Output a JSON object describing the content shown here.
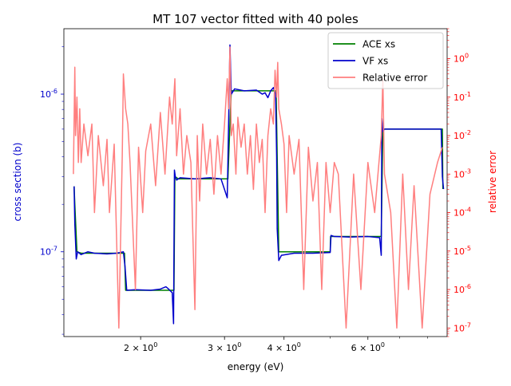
{
  "chart_data": {
    "type": "line",
    "title": "MT 107 vector fitted with 40 poles",
    "xlabel": "energy (eV)",
    "ylabel_left": "cross section (b)",
    "ylabel_right": "relative error",
    "x_scale": "log",
    "y_left_scale": "log",
    "y_right_scale": "log",
    "xlim": [
      1.38,
      8.8
    ],
    "ylim_left": [
      2.9e-08,
      2.6e-06
    ],
    "ylim_right": [
      6e-08,
      6.0
    ],
    "x_ticks": [
      {
        "value": 2,
        "label": "2 × 10^0"
      },
      {
        "value": 3,
        "label": "3 × 10^0"
      },
      {
        "value": 4,
        "label": "4 × 10^0"
      },
      {
        "value": 6,
        "label": "6 × 10^0"
      }
    ],
    "y_left_ticks": [
      {
        "value": 1e-07,
        "label": "10^-7"
      },
      {
        "value": 1e-06,
        "label": "10^-6"
      }
    ],
    "y_right_ticks": [
      {
        "value": 1e-07,
        "label": "10^-7"
      },
      {
        "value": 1e-06,
        "label": "10^-6"
      },
      {
        "value": 1e-05,
        "label": "10^-5"
      },
      {
        "value": 0.0001,
        "label": "10^-4"
      },
      {
        "value": 0.001,
        "label": "10^-3"
      },
      {
        "value": 0.01,
        "label": "10^-2"
      },
      {
        "value": 0.1,
        "label": "10^-1"
      },
      {
        "value": 1,
        "label": "10^0"
      }
    ],
    "legend": {
      "placement": "top-right",
      "entries": [
        {
          "label": "ACE xs",
          "color": "#008000"
        },
        {
          "label": "VF xs",
          "color": "#0000cc"
        },
        {
          "label": "Relative error",
          "color": "#ff7f7f"
        }
      ]
    },
    "series": [
      {
        "name": "ACE xs",
        "axis": "left",
        "color": "#008000",
        "x": [
          1.45,
          1.455,
          1.47,
          1.5,
          1.6,
          1.75,
          1.85,
          1.86,
          2.3,
          2.35,
          2.36,
          2.4,
          3.05,
          3.07,
          3.1,
          3.12,
          3.5,
          3.85,
          3.9,
          3.95,
          4.6,
          5.0,
          5.01,
          6.4,
          6.45,
          6.5,
          8.6,
          8.62
        ],
        "y": [
          2.6e-07,
          2e-07,
          1e-07,
          9.8e-08,
          9.8e-08,
          9.8e-08,
          9.8e-08,
          5.7e-08,
          5.7e-08,
          5.7e-08,
          3e-07,
          2.9e-07,
          2.9e-07,
          5e-07,
          1.05e-06,
          1.05e-06,
          1.05e-06,
          1.05e-06,
          1e-07,
          1e-07,
          1e-07,
          1e-07,
          1.25e-07,
          1.25e-07,
          6e-07,
          6e-07,
          6e-07,
          2.5e-07
        ]
      },
      {
        "name": "VF xs",
        "axis": "left",
        "color": "#0000cc",
        "x": [
          1.45,
          1.455,
          1.465,
          1.475,
          1.5,
          1.55,
          1.6,
          1.7,
          1.78,
          1.84,
          1.855,
          1.87,
          1.95,
          2.1,
          2.2,
          2.26,
          2.29,
          2.33,
          2.345,
          2.355,
          2.365,
          2.38,
          2.42,
          2.6,
          2.8,
          2.95,
          3.04,
          3.06,
          3.08,
          3.1,
          3.15,
          3.3,
          3.5,
          3.6,
          3.65,
          3.7,
          3.75,
          3.8,
          3.84,
          3.86,
          3.87,
          3.9,
          3.95,
          4.2,
          4.6,
          5.0,
          5.02,
          5.1,
          5.5,
          6.0,
          6.35,
          6.4,
          6.42,
          6.45,
          6.5,
          7.0,
          8.0,
          8.55,
          8.6,
          8.65
        ],
        "y": [
          2.6e-07,
          1.5e-07,
          9e-08,
          1e-07,
          9.6e-08,
          1e-07,
          9.8e-08,
          9.7e-08,
          9.8e-08,
          1e-07,
          8e-08,
          5.7e-08,
          5.75e-08,
          5.7e-08,
          5.8e-08,
          6e-08,
          5.8e-08,
          5.5e-08,
          3.5e-08,
          3.3e-07,
          3e-07,
          2.85e-07,
          2.95e-07,
          2.9e-07,
          2.95e-07,
          2.9e-07,
          2.2e-07,
          6.5e-07,
          2.05e-06,
          1e-06,
          1.08e-06,
          1.05e-06,
          1.06e-06,
          1e-06,
          1.02e-06,
          9.5e-07,
          1.05e-06,
          1.1e-06,
          1e-06,
          4e-07,
          1.4e-07,
          8.8e-08,
          9.5e-08,
          9.8e-08,
          9.8e-08,
          9.9e-08,
          1.27e-07,
          1.25e-07,
          1.24e-07,
          1.25e-07,
          1.23e-07,
          9.5e-08,
          7e-07,
          5.8e-07,
          6e-07,
          6e-07,
          6e-07,
          6e-07,
          3e-07,
          2.5e-07
        ]
      },
      {
        "name": "Relative error",
        "axis": "right",
        "color": "#ff7f7f",
        "x": [
          1.445,
          1.455,
          1.46,
          1.47,
          1.48,
          1.49,
          1.5,
          1.52,
          1.55,
          1.58,
          1.6,
          1.63,
          1.67,
          1.7,
          1.72,
          1.76,
          1.8,
          1.83,
          1.84,
          1.86,
          1.88,
          1.9,
          1.95,
          1.98,
          2.02,
          2.05,
          2.1,
          2.15,
          2.2,
          2.25,
          2.3,
          2.33,
          2.36,
          2.38,
          2.42,
          2.46,
          2.5,
          2.55,
          2.6,
          2.63,
          2.66,
          2.7,
          2.75,
          2.8,
          2.85,
          2.9,
          2.95,
          3.0,
          3.04,
          3.06,
          3.08,
          3.1,
          3.13,
          3.17,
          3.2,
          3.25,
          3.3,
          3.35,
          3.4,
          3.45,
          3.5,
          3.55,
          3.6,
          3.65,
          3.7,
          3.75,
          3.8,
          3.83,
          3.86,
          3.88,
          3.9,
          3.95,
          4.0,
          4.05,
          4.1,
          4.2,
          4.3,
          4.4,
          4.5,
          4.6,
          4.7,
          4.8,
          4.9,
          5.0,
          5.1,
          5.2,
          5.4,
          5.6,
          5.8,
          6.0,
          6.2,
          6.4,
          6.45,
          6.5,
          6.7,
          6.9,
          7.1,
          7.3,
          7.5,
          7.8,
          8.1,
          8.4,
          8.6
        ],
        "y": [
          0.001,
          0.6,
          0.01,
          0.1,
          0.002,
          0.05,
          0.002,
          0.02,
          0.003,
          0.02,
          0.0001,
          0.01,
          0.0005,
          0.008,
          0.0001,
          0.006,
          1e-07,
          0.003,
          0.4,
          0.05,
          0.02,
          0.002,
          1e-06,
          0.005,
          0.0001,
          0.004,
          0.02,
          0.0005,
          0.04,
          0.001,
          0.1,
          0.02,
          0.3,
          0.003,
          0.05,
          0.001,
          0.01,
          0.002,
          3e-07,
          0.01,
          0.0002,
          0.02,
          0.001,
          0.008,
          0.0003,
          0.01,
          0.001,
          0.02,
          0.3,
          0.05,
          2.0,
          0.01,
          0.02,
          0.001,
          0.03,
          0.005,
          0.02,
          0.001,
          0.01,
          0.0004,
          0.02,
          0.002,
          0.008,
          0.0001,
          0.01,
          0.05,
          0.02,
          0.5,
          0.1,
          0.8,
          0.05,
          0.02,
          0.006,
          0.0001,
          0.01,
          0.001,
          0.008,
          1e-06,
          0.005,
          0.0002,
          0.002,
          1e-06,
          0.002,
          0.0001,
          0.002,
          0.001,
          1e-07,
          0.001,
          1e-06,
          0.002,
          0.0001,
          0.01,
          0.3,
          0.001,
          0.0001,
          1e-07,
          0.001,
          1e-06,
          0.0005,
          1e-07,
          0.0003,
          0.002,
          0.005
        ]
      }
    ],
    "grid": false
  }
}
